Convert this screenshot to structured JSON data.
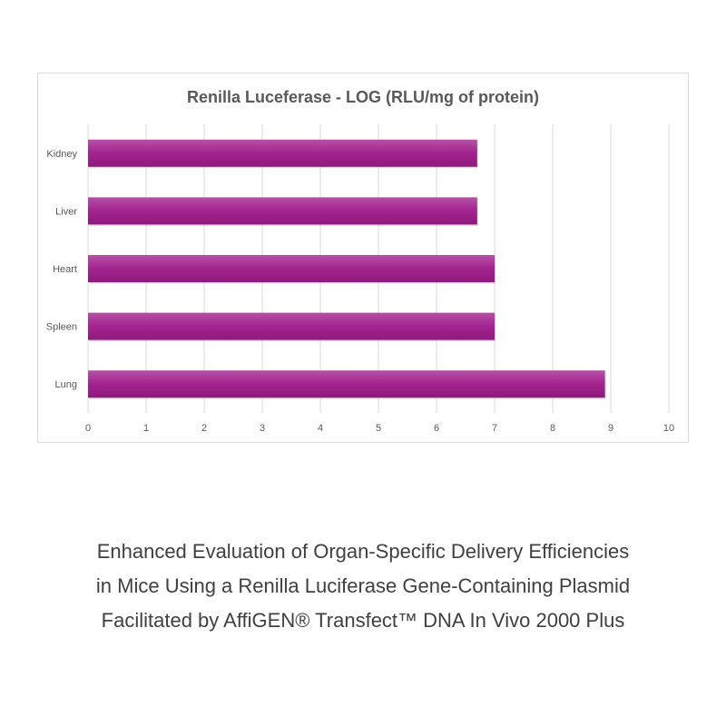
{
  "chart_data": {
    "type": "bar",
    "orientation": "horizontal",
    "title": "Renilla Luceferase - LOG (RLU/mg of protein)",
    "categories": [
      "Kidney",
      "Liver",
      "Heart",
      "Spleen",
      "Lung"
    ],
    "values": [
      6.7,
      6.7,
      7.0,
      7.0,
      8.9
    ],
    "xlim": [
      0,
      10
    ],
    "xticks": [
      "0",
      "1",
      "2",
      "3",
      "4",
      "5",
      "6",
      "7",
      "8",
      "9",
      "10"
    ],
    "grid": true,
    "bar_color": "#a0208e"
  },
  "caption": {
    "lines": [
      "Enhanced Evaluation of Organ-Specific Delivery Efficiencies",
      "in Mice Using a Renilla Luciferase Gene-Containing Plasmid",
      "Facilitated by AffiGEN® Transfect™ DNA In Vivo 2000 Plus"
    ]
  }
}
